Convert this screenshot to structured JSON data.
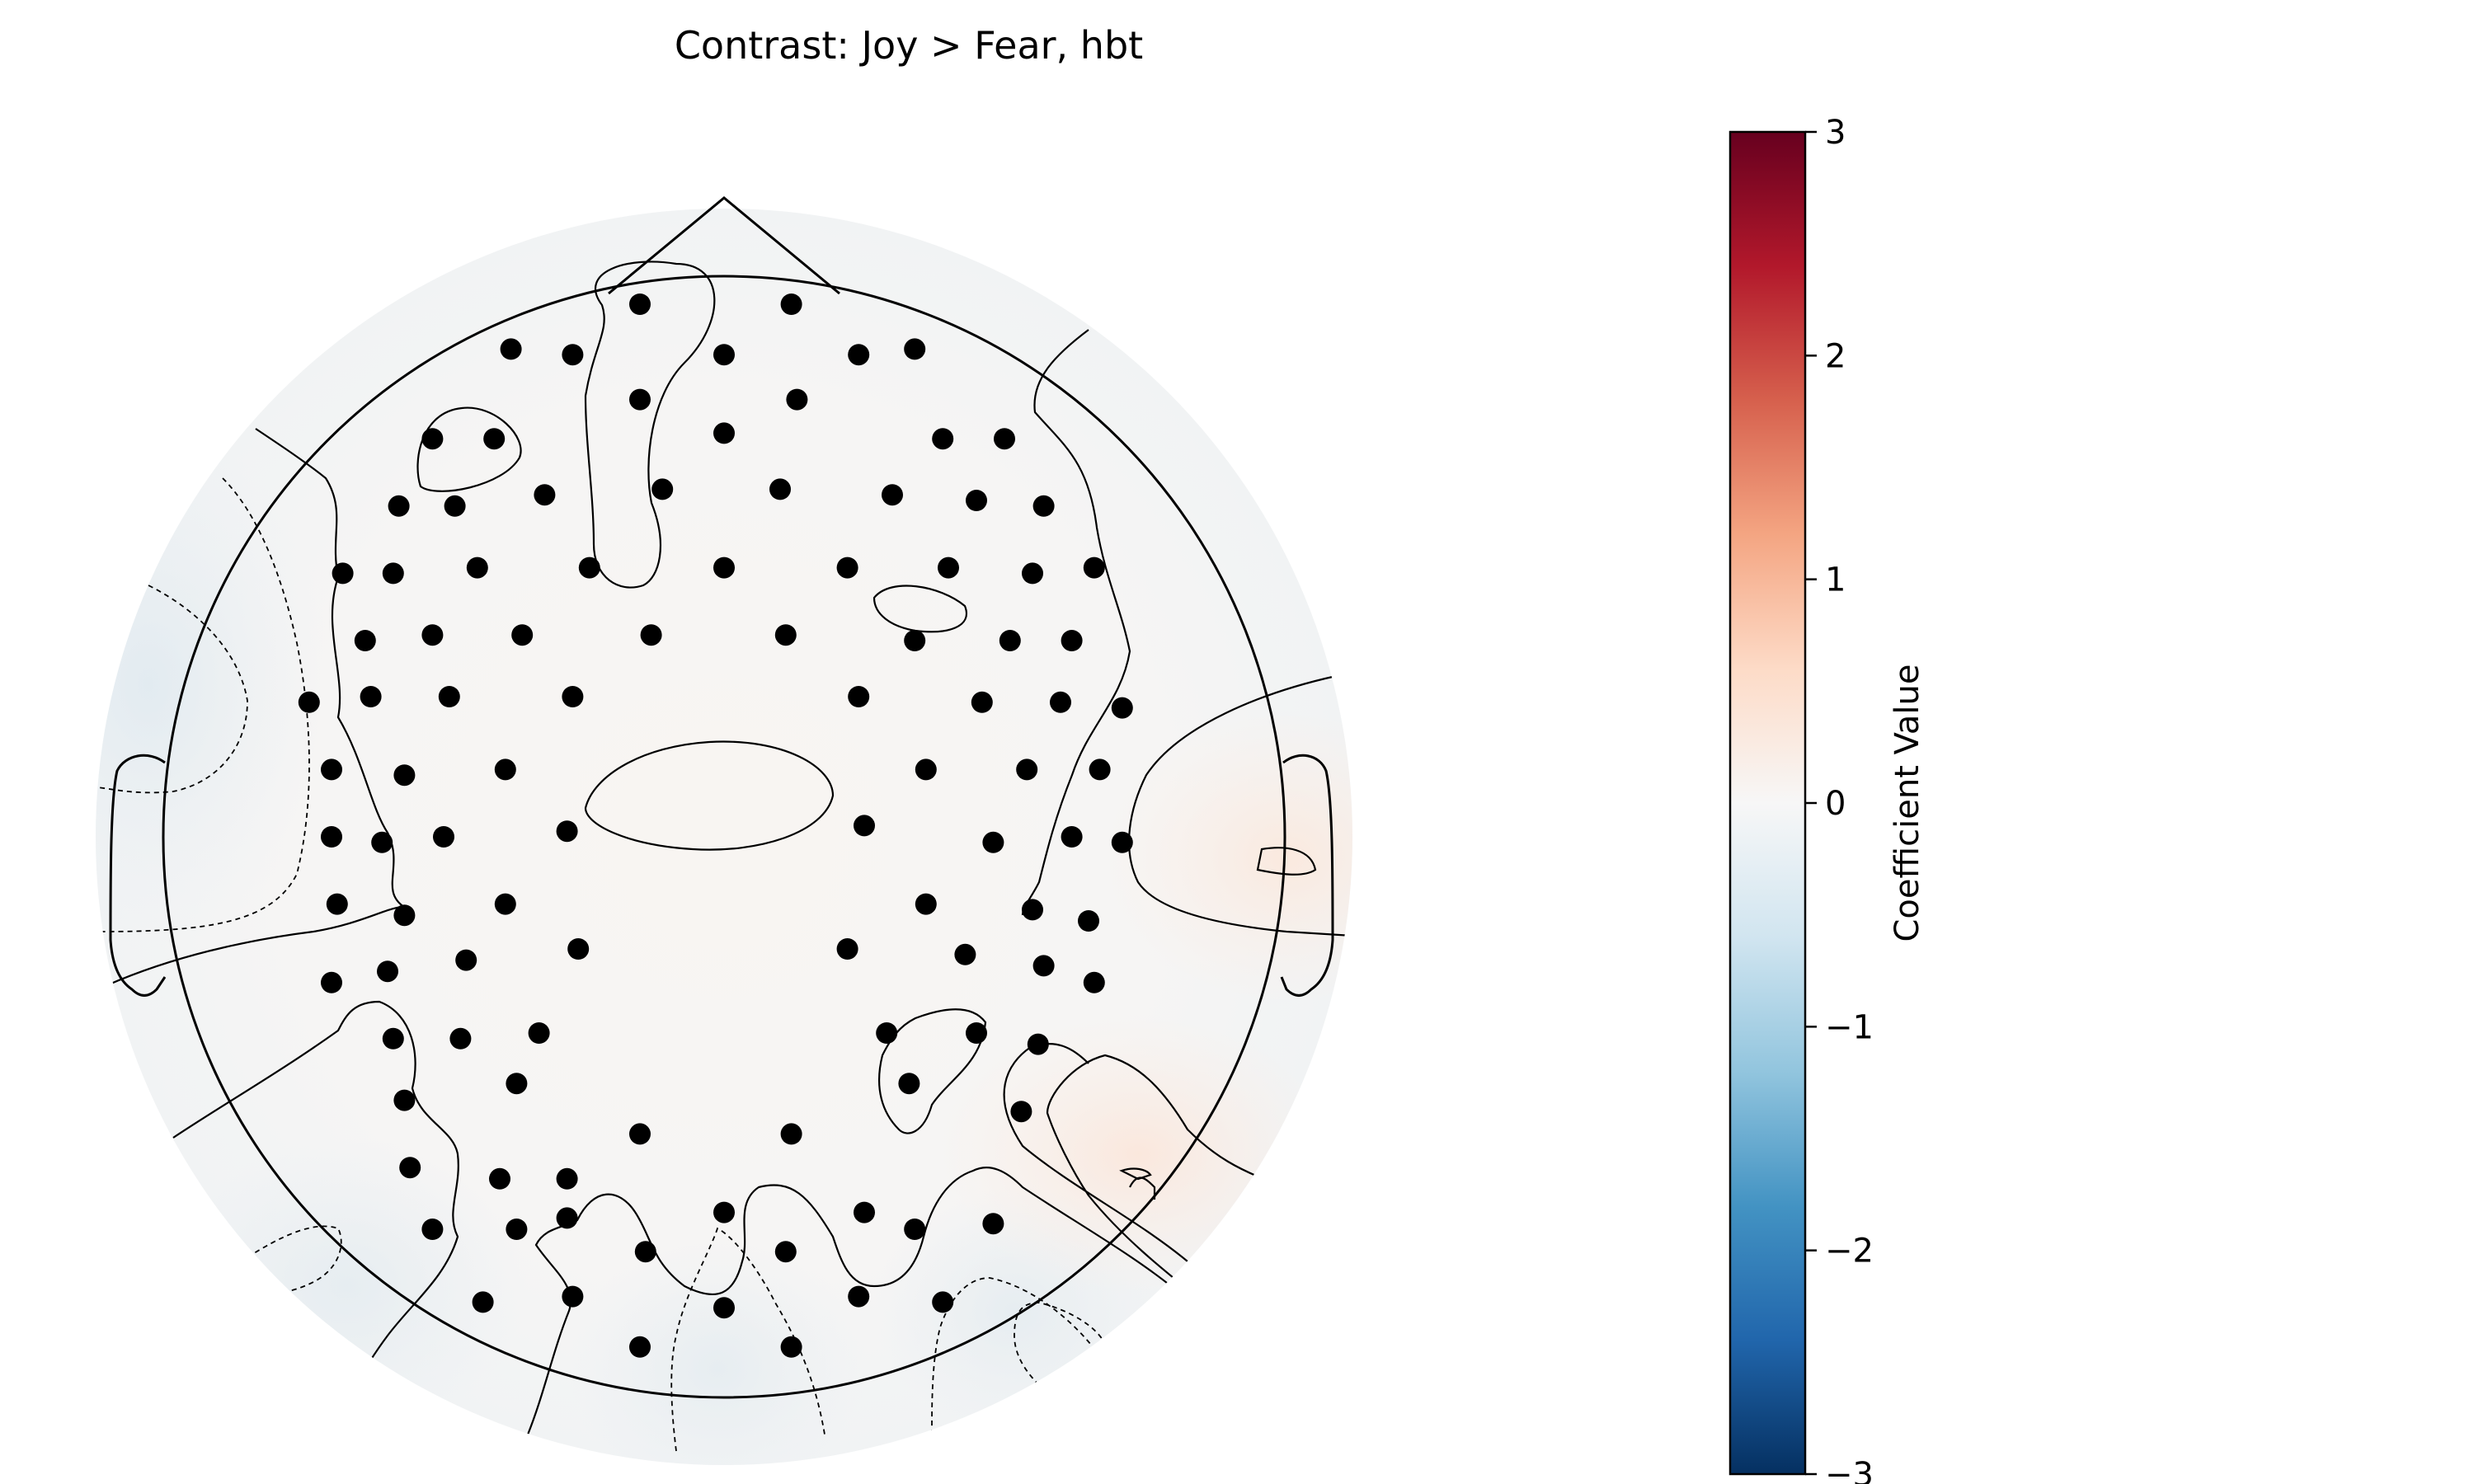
{
  "chart_data": {
    "type": "heatmap",
    "subtype": "topographic-scalp-map",
    "title": "Contrast: Joy > Fear, hbt",
    "colormap": "RdBu_r",
    "colorbar": {
      "label": "Coefficient Value",
      "range": [
        -3,
        3
      ],
      "ticks": [
        3,
        2,
        1,
        0,
        -1,
        -2,
        -3
      ],
      "tick_labels": [
        "3",
        "2",
        "1",
        "0",
        "−1",
        "−2",
        "−3"
      ],
      "colors": [
        "#67001f",
        "#b2182b",
        "#d6604d",
        "#f4a582",
        "#fddbc7",
        "#f7f7f7",
        "#d1e5f0",
        "#92c5de",
        "#4393c3",
        "#2166ac",
        "#053061"
      ]
    },
    "sensors": [
      [
        -0.15,
        0.95
      ],
      [
        0.12,
        0.95
      ],
      [
        -0.38,
        0.87
      ],
      [
        -0.27,
        0.86
      ],
      [
        0.0,
        0.86
      ],
      [
        0.24,
        0.86
      ],
      [
        0.34,
        0.87
      ],
      [
        -0.15,
        0.78
      ],
      [
        0.13,
        0.78
      ],
      [
        -0.52,
        0.71
      ],
      [
        -0.41,
        0.71
      ],
      [
        0.0,
        0.72
      ],
      [
        0.39,
        0.71
      ],
      [
        0.5,
        0.71
      ],
      [
        -0.58,
        0.59
      ],
      [
        -0.48,
        0.59
      ],
      [
        -0.32,
        0.61
      ],
      [
        -0.11,
        0.62
      ],
      [
        0.1,
        0.62
      ],
      [
        0.3,
        0.61
      ],
      [
        0.45,
        0.6
      ],
      [
        0.57,
        0.59
      ],
      [
        -0.68,
        0.47
      ],
      [
        -0.59,
        0.47
      ],
      [
        -0.44,
        0.48
      ],
      [
        -0.24,
        0.48
      ],
      [
        0.0,
        0.48
      ],
      [
        0.22,
        0.48
      ],
      [
        0.4,
        0.48
      ],
      [
        0.55,
        0.47
      ],
      [
        0.66,
        0.48
      ],
      [
        -0.64,
        0.35
      ],
      [
        -0.52,
        0.36
      ],
      [
        -0.36,
        0.36
      ],
      [
        -0.13,
        0.36
      ],
      [
        0.11,
        0.36
      ],
      [
        0.34,
        0.35
      ],
      [
        0.51,
        0.35
      ],
      [
        0.62,
        0.35
      ],
      [
        -0.74,
        0.24
      ],
      [
        -0.63,
        0.25
      ],
      [
        -0.49,
        0.25
      ],
      [
        -0.27,
        0.25
      ],
      [
        0.24,
        0.25
      ],
      [
        0.46,
        0.24
      ],
      [
        0.6,
        0.24
      ],
      [
        0.71,
        0.23
      ],
      [
        -0.7,
        0.12
      ],
      [
        -0.57,
        0.11
      ],
      [
        -0.39,
        0.12
      ],
      [
        0.36,
        0.12
      ],
      [
        0.54,
        0.12
      ],
      [
        0.67,
        0.12
      ],
      [
        -0.7,
        0.0
      ],
      [
        -0.61,
        -0.01
      ],
      [
        -0.5,
        0.0
      ],
      [
        -0.28,
        0.01
      ],
      [
        0.25,
        0.02
      ],
      [
        0.48,
        -0.01
      ],
      [
        0.62,
        0.0
      ],
      [
        0.71,
        -0.01
      ],
      [
        -0.69,
        -0.12
      ],
      [
        -0.57,
        -0.14
      ],
      [
        -0.39,
        -0.12
      ],
      [
        0.36,
        -0.12
      ],
      [
        0.55,
        -0.13
      ],
      [
        0.65,
        -0.15
      ],
      [
        -0.7,
        -0.26
      ],
      [
        -0.6,
        -0.24
      ],
      [
        -0.46,
        -0.22
      ],
      [
        -0.26,
        -0.2
      ],
      [
        0.22,
        -0.2
      ],
      [
        0.43,
        -0.21
      ],
      [
        0.57,
        -0.23
      ],
      [
        0.66,
        -0.26
      ],
      [
        -0.59,
        -0.36
      ],
      [
        -0.47,
        -0.36
      ],
      [
        -0.33,
        -0.35
      ],
      [
        0.29,
        -0.35
      ],
      [
        0.45,
        -0.35
      ],
      [
        0.56,
        -0.37
      ],
      [
        -0.57,
        -0.47
      ],
      [
        -0.37,
        -0.44
      ],
      [
        0.33,
        -0.44
      ],
      [
        0.53,
        -0.49
      ],
      [
        -0.56,
        -0.59
      ],
      [
        -0.4,
        -0.61
      ],
      [
        -0.28,
        -0.61
      ],
      [
        -0.15,
        -0.53
      ],
      [
        0.12,
        -0.53
      ],
      [
        -0.52,
        -0.7
      ],
      [
        -0.37,
        -0.7
      ],
      [
        -0.28,
        -0.68
      ],
      [
        -0.14,
        -0.74
      ],
      [
        0.0,
        -0.67
      ],
      [
        0.11,
        -0.74
      ],
      [
        0.25,
        -0.67
      ],
      [
        0.34,
        -0.7
      ],
      [
        0.48,
        -0.69
      ],
      [
        -0.43,
        -0.83
      ],
      [
        -0.27,
        -0.82
      ],
      [
        0.0,
        -0.84
      ],
      [
        0.24,
        -0.82
      ],
      [
        0.39,
        -0.83
      ],
      [
        -0.15,
        -0.91
      ],
      [
        0.12,
        -0.91
      ]
    ]
  }
}
